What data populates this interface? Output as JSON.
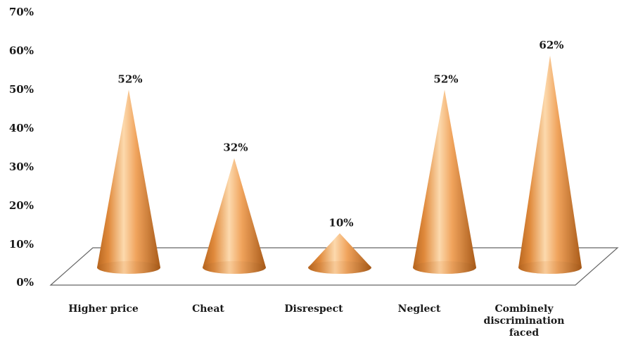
{
  "chart_data": {
    "type": "bar",
    "style": "3d-cone",
    "categories": [
      "Higher price",
      "Cheat",
      "Disrespect",
      "Neglect",
      "Combinely discrimination faced"
    ],
    "category_lines": [
      [
        "Higher price"
      ],
      [
        "Cheat"
      ],
      [
        "Disrespect"
      ],
      [
        "Neglect"
      ],
      [
        "Combinely",
        "discrimination",
        "faced"
      ]
    ],
    "values": [
      52,
      32,
      10,
      52,
      62
    ],
    "data_labels": [
      "52%",
      "32%",
      "10%",
      "52%",
      "62%"
    ],
    "yticks": [
      "0%",
      "10%",
      "20%",
      "30%",
      "40%",
      "50%",
      "60%",
      "70%"
    ],
    "ylim": [
      0,
      70
    ],
    "title": "",
    "xlabel": "",
    "ylabel": "",
    "grid": false,
    "legend": "none",
    "colors": {
      "cone_light": "#fcd9ad",
      "cone_mid": "#f0a35c",
      "cone_dark": "#b8661f",
      "floor_line": "#666666"
    }
  }
}
